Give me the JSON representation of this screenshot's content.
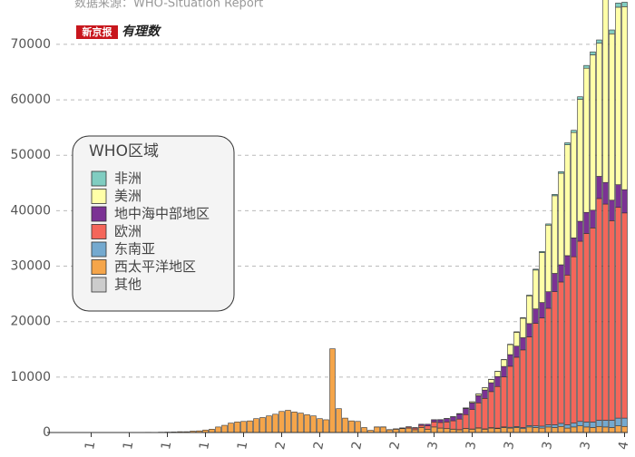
{
  "chart_data": {
    "type": "stacked_bar",
    "subtitle": "数据来源：WHO-Situation Report",
    "annotations": [
      "新京报",
      "有理数"
    ],
    "legend_title": "WHO区域",
    "legend": "left",
    "grid": true,
    "ylim": [
      0,
      78000
    ],
    "yticks": [
      0,
      10000,
      20000,
      30000,
      40000,
      50000,
      60000,
      70000
    ],
    "categories": [
      null,
      null,
      null,
      null,
      null,
      "1",
      null,
      null,
      null,
      null,
      null,
      "1",
      null,
      null,
      null,
      null,
      null,
      "1",
      null,
      null,
      null,
      null,
      null,
      "1",
      null,
      null,
      null,
      null,
      null,
      "1",
      null,
      null,
      null,
      null,
      null,
      "2",
      null,
      null,
      null,
      null,
      null,
      "2",
      null,
      null,
      null,
      null,
      null,
      "2",
      null,
      null,
      null,
      null,
      null,
      "2",
      null,
      null,
      null,
      null,
      null,
      "3",
      null,
      null,
      null,
      null,
      null,
      "3",
      null,
      null,
      null,
      null,
      null,
      "3",
      null,
      null,
      null,
      null,
      null,
      "3",
      null,
      null,
      null,
      null,
      null,
      "3",
      null,
      null,
      null,
      null,
      null,
      "4"
    ],
    "series": [
      {
        "name": "非洲",
        "color": "#80cdc1",
        "values": [
          0,
          0,
          0,
          0,
          0,
          0,
          0,
          0,
          0,
          0,
          0,
          0,
          0,
          0,
          0,
          0,
          0,
          0,
          0,
          0,
          0,
          0,
          0,
          0,
          0,
          0,
          0,
          0,
          0,
          0,
          0,
          0,
          0,
          0,
          0,
          0,
          0,
          0,
          0,
          0,
          0,
          0,
          0,
          0,
          0,
          0,
          0,
          0,
          0,
          0,
          0,
          0,
          0,
          0,
          0,
          0,
          0,
          0,
          0,
          0,
          0,
          0,
          0,
          5,
          5,
          10,
          10,
          20,
          30,
          40,
          50,
          70,
          90,
          110,
          130,
          160,
          200,
          220,
          250,
          300,
          350,
          400,
          450,
          500,
          550,
          600,
          650,
          700,
          750,
          800
        ]
      },
      {
        "name": "美洲",
        "color": "#ffffa8",
        "values": [
          0,
          0,
          0,
          0,
          0,
          0,
          0,
          0,
          0,
          0,
          0,
          0,
          0,
          0,
          0,
          0,
          0,
          0,
          0,
          0,
          0,
          0,
          0,
          0,
          0,
          0,
          0,
          0,
          0,
          0,
          0,
          0,
          0,
          0,
          0,
          0,
          0,
          0,
          0,
          0,
          0,
          0,
          0,
          0,
          0,
          0,
          0,
          0,
          0,
          0,
          0,
          0,
          0,
          0,
          0,
          0,
          0,
          0,
          0,
          10,
          20,
          30,
          50,
          80,
          100,
          200,
          300,
          400,
          600,
          900,
          1200,
          1800,
          2500,
          3500,
          5000,
          7000,
          9000,
          12000,
          14000,
          16500,
          20000,
          19000,
          22000,
          26000,
          28000,
          24000,
          35000,
          30000,
          32000,
          33000
        ]
      },
      {
        "name": "地中海中部地区",
        "color": "#7b3294",
        "values": [
          0,
          0,
          0,
          0,
          0,
          0,
          0,
          0,
          0,
          0,
          0,
          0,
          0,
          0,
          0,
          0,
          0,
          0,
          0,
          0,
          0,
          0,
          0,
          0,
          0,
          0,
          0,
          0,
          0,
          0,
          0,
          0,
          0,
          0,
          0,
          0,
          0,
          0,
          0,
          0,
          0,
          0,
          0,
          0,
          0,
          0,
          0,
          0,
          0,
          0,
          0,
          0,
          0,
          10,
          30,
          50,
          100,
          200,
          300,
          400,
          500,
          600,
          700,
          900,
          1100,
          1200,
          1300,
          1500,
          1600,
          1800,
          1900,
          2100,
          2000,
          2200,
          2400,
          2600,
          2800,
          3000,
          3300,
          3100,
          3500,
          3400,
          3600,
          3800,
          3200,
          4000,
          3900,
          3700,
          4100,
          4200
        ]
      },
      {
        "name": "欧洲",
        "color": "#f4665a",
        "values": [
          0,
          0,
          0,
          0,
          0,
          0,
          0,
          0,
          0,
          0,
          0,
          0,
          0,
          0,
          0,
          0,
          0,
          0,
          0,
          0,
          0,
          0,
          0,
          0,
          0,
          0,
          0,
          0,
          0,
          0,
          0,
          0,
          0,
          0,
          0,
          0,
          0,
          0,
          0,
          0,
          0,
          0,
          0,
          0,
          0,
          0,
          0,
          0,
          0,
          0,
          10,
          20,
          30,
          50,
          100,
          200,
          300,
          400,
          600,
          900,
          1000,
          1200,
          1500,
          1900,
          2500,
          3500,
          4500,
          5500,
          6500,
          7500,
          9000,
          11000,
          12500,
          14000,
          16000,
          18500,
          19500,
          21000,
          24000,
          25500,
          27000,
          30000,
          32500,
          34000,
          35000,
          40000,
          39000,
          36000,
          38000,
          37000
        ]
      },
      {
        "name": "东南亚",
        "color": "#74a9cf",
        "values": [
          0,
          0,
          0,
          0,
          0,
          0,
          0,
          0,
          0,
          0,
          0,
          0,
          0,
          0,
          0,
          0,
          0,
          0,
          0,
          0,
          0,
          0,
          0,
          0,
          0,
          0,
          0,
          0,
          0,
          0,
          0,
          0,
          0,
          0,
          0,
          0,
          0,
          0,
          0,
          0,
          0,
          0,
          0,
          0,
          0,
          0,
          0,
          0,
          0,
          0,
          0,
          0,
          0,
          0,
          0,
          0,
          0,
          0,
          0,
          0,
          10,
          10,
          20,
          20,
          30,
          40,
          50,
          60,
          80,
          100,
          120,
          150,
          180,
          200,
          250,
          300,
          350,
          400,
          500,
          550,
          600,
          700,
          800,
          900,
          1000,
          1100,
          1200,
          1300,
          1400,
          1500
        ]
      },
      {
        "name": "西太平洋地区",
        "color": "#f5a54a",
        "values": [
          0,
          0,
          0,
          0,
          0,
          0,
          0,
          0,
          20,
          0,
          30,
          0,
          25,
          0,
          40,
          0,
          60,
          80,
          100,
          150,
          150,
          250,
          300,
          450,
          600,
          1000,
          1300,
          1700,
          1900,
          2000,
          2100,
          2500,
          2700,
          3000,
          3300,
          3800,
          4000,
          3700,
          3500,
          3200,
          3000,
          2500,
          2300,
          15100,
          4300,
          2600,
          2100,
          2000,
          900,
          400,
          1000,
          1000,
          500,
          600,
          700,
          800,
          500,
          900,
          600,
          1000,
          800,
          700,
          600,
          500,
          700,
          600,
          800,
          600,
          800,
          700,
          900,
          800,
          900,
          700,
          1000,
          900,
          800,
          1000,
          900,
          1100,
          800,
          1000,
          1200,
          1000,
          900,
          1100,
          1000,
          900,
          1200,
          1100
        ]
      },
      {
        "name": "其他",
        "color": "#cccccc",
        "values": [
          0,
          0,
          0,
          0,
          0,
          0,
          0,
          0,
          0,
          0,
          0,
          0,
          0,
          0,
          0,
          0,
          0,
          0,
          0,
          0,
          0,
          0,
          0,
          0,
          0,
          0,
          0,
          0,
          0,
          0,
          0,
          0,
          0,
          0,
          0,
          0,
          0,
          0,
          0,
          0,
          0,
          0,
          0,
          0,
          0,
          0,
          0,
          0,
          0,
          0,
          0,
          0,
          0,
          0,
          0,
          0,
          0,
          0,
          0,
          0,
          0,
          0,
          0,
          0,
          0,
          0,
          0,
          0,
          0,
          0,
          0,
          0,
          0,
          0,
          0,
          0,
          0,
          0,
          0,
          0,
          0,
          0,
          0,
          0,
          0,
          0,
          0,
          0,
          0,
          0
        ]
      }
    ]
  }
}
